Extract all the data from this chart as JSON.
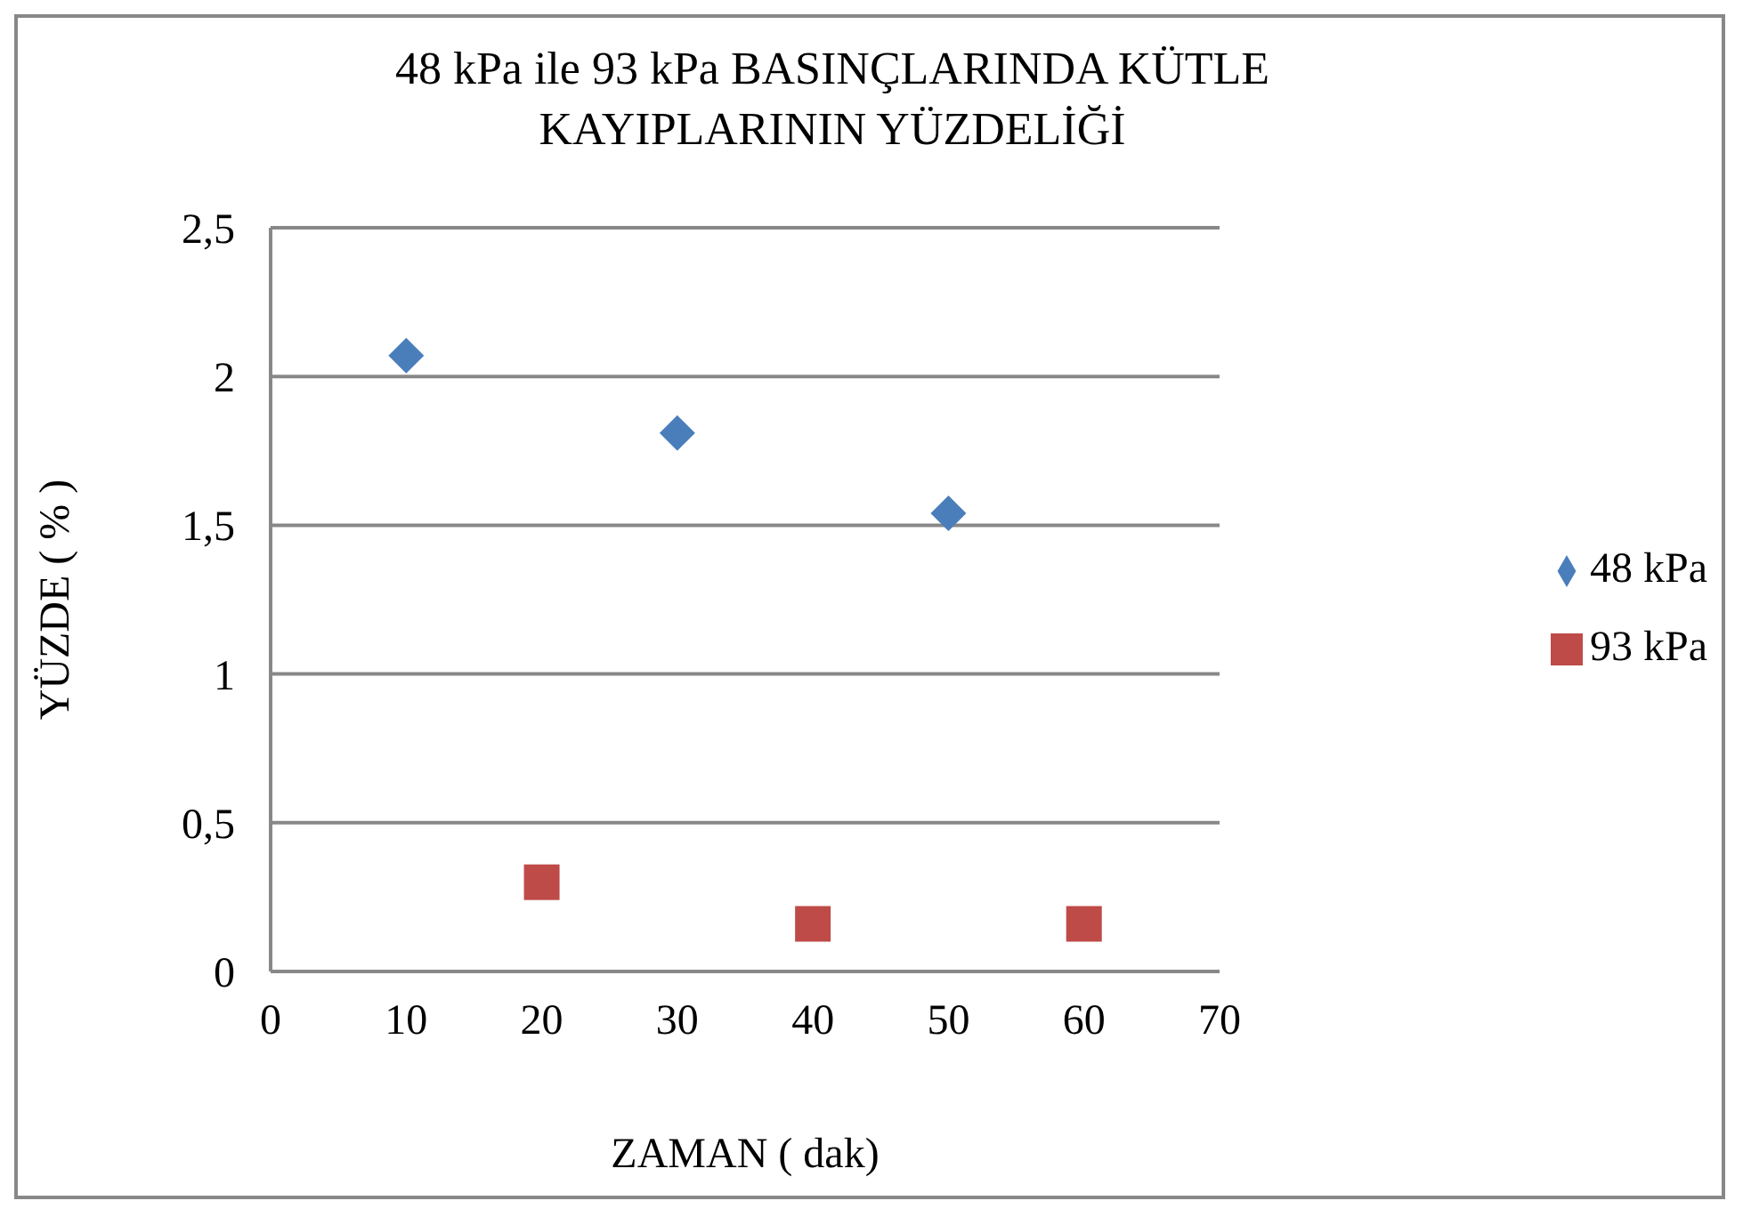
{
  "chart_data": {
    "type": "scatter",
    "title": "48 kPa ile 93 kPa BASINÇLARINDA KÜTLE KAYIPLARININ YÜZDELİĞİ",
    "xlabel": "ZAMAN ( dak)",
    "ylabel": "YÜZDE ( % )",
    "series": [
      {
        "name": "48 kPa",
        "color": "#4a7ebb",
        "marker": "diamond",
        "x": [
          10,
          30,
          50
        ],
        "values": [
          2.07,
          1.81,
          1.54
        ]
      },
      {
        "name": "93 kPa",
        "color": "#be4b48",
        "marker": "square",
        "x": [
          20,
          40,
          60
        ],
        "values": [
          0.3,
          0.16,
          0.16
        ]
      }
    ],
    "xlim": [
      0,
      70
    ],
    "xticks": [
      0,
      10,
      20,
      30,
      40,
      50,
      60,
      70
    ],
    "ylim": [
      0,
      2.5
    ],
    "yticks": [
      0,
      {
        "value": 0.5,
        "label": "0,5"
      },
      1,
      {
        "value": 1.5,
        "label": "1,5"
      },
      2,
      {
        "value": 2.5,
        "label": "2,5"
      }
    ],
    "grid": "y",
    "legend": "right"
  }
}
